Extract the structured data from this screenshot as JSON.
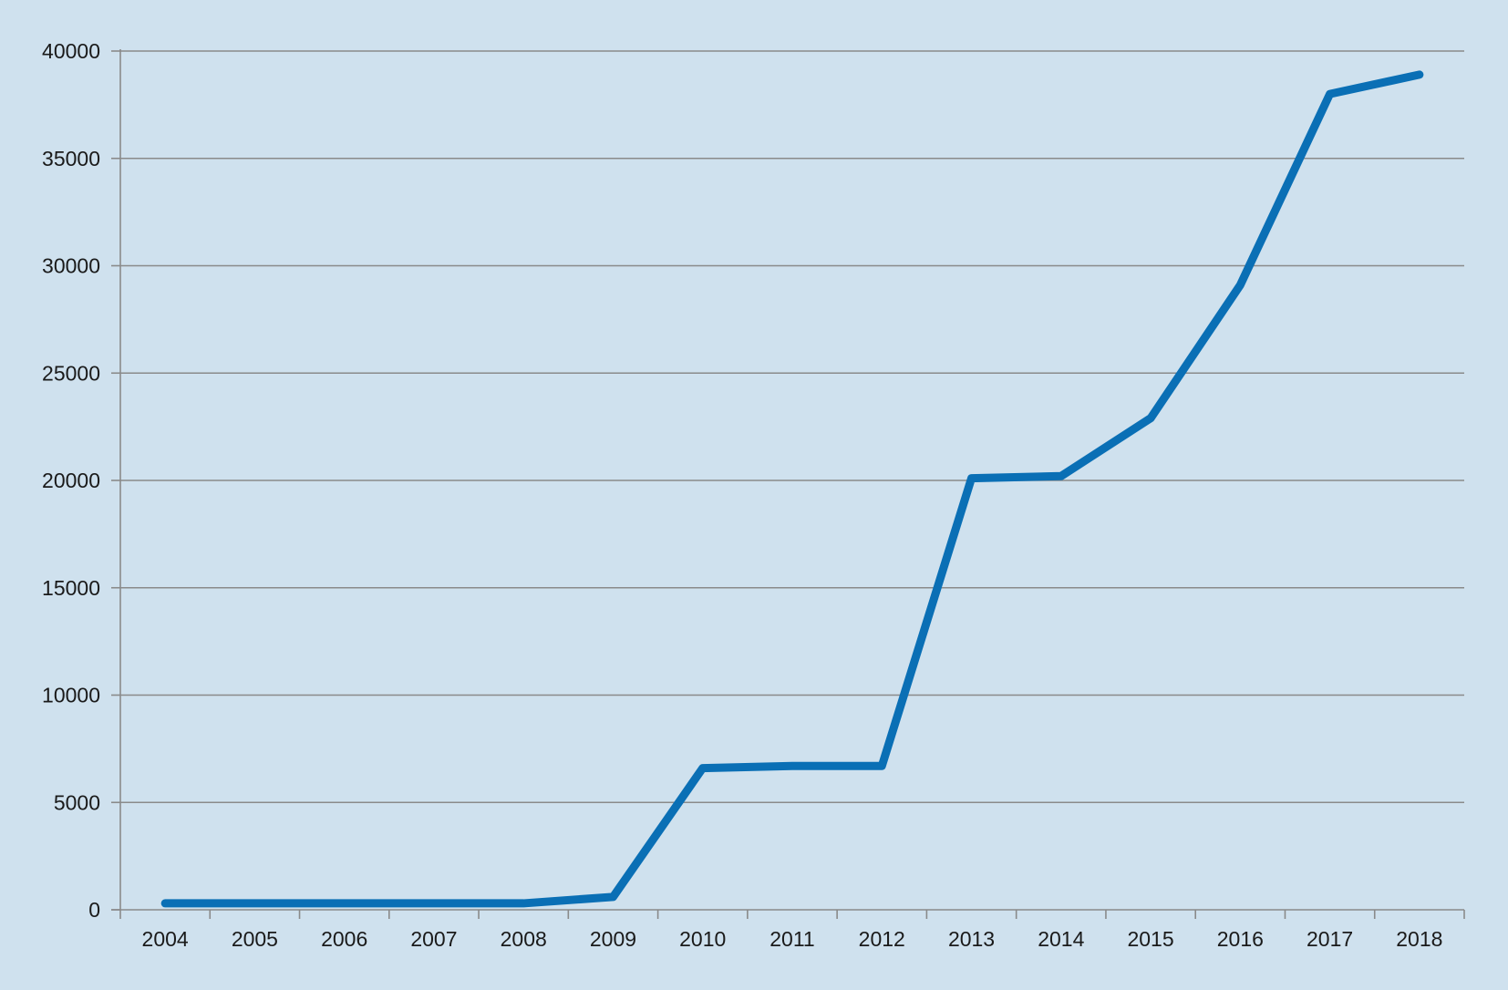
{
  "chart_data": {
    "type": "line",
    "title": "",
    "xlabel": "",
    "ylabel": "",
    "categories": [
      "2004",
      "2005",
      "2006",
      "2007",
      "2008",
      "2009",
      "2010",
      "2011",
      "2012",
      "2013",
      "2014",
      "2015",
      "2016",
      "2017",
      "2018"
    ],
    "series": [
      {
        "values": [
          300,
          300,
          300,
          300,
          300,
          600,
          6600,
          6700,
          6700,
          20100,
          20200,
          22900,
          29100,
          38000,
          38900
        ],
        "color": "#0a6fb5"
      }
    ],
    "ylim": [
      0,
      40000
    ],
    "yticks": [
      0,
      5000,
      10000,
      15000,
      20000,
      25000,
      30000,
      35000,
      40000
    ],
    "grid": true,
    "legend": "none",
    "background_color": "#cfe1ee"
  }
}
